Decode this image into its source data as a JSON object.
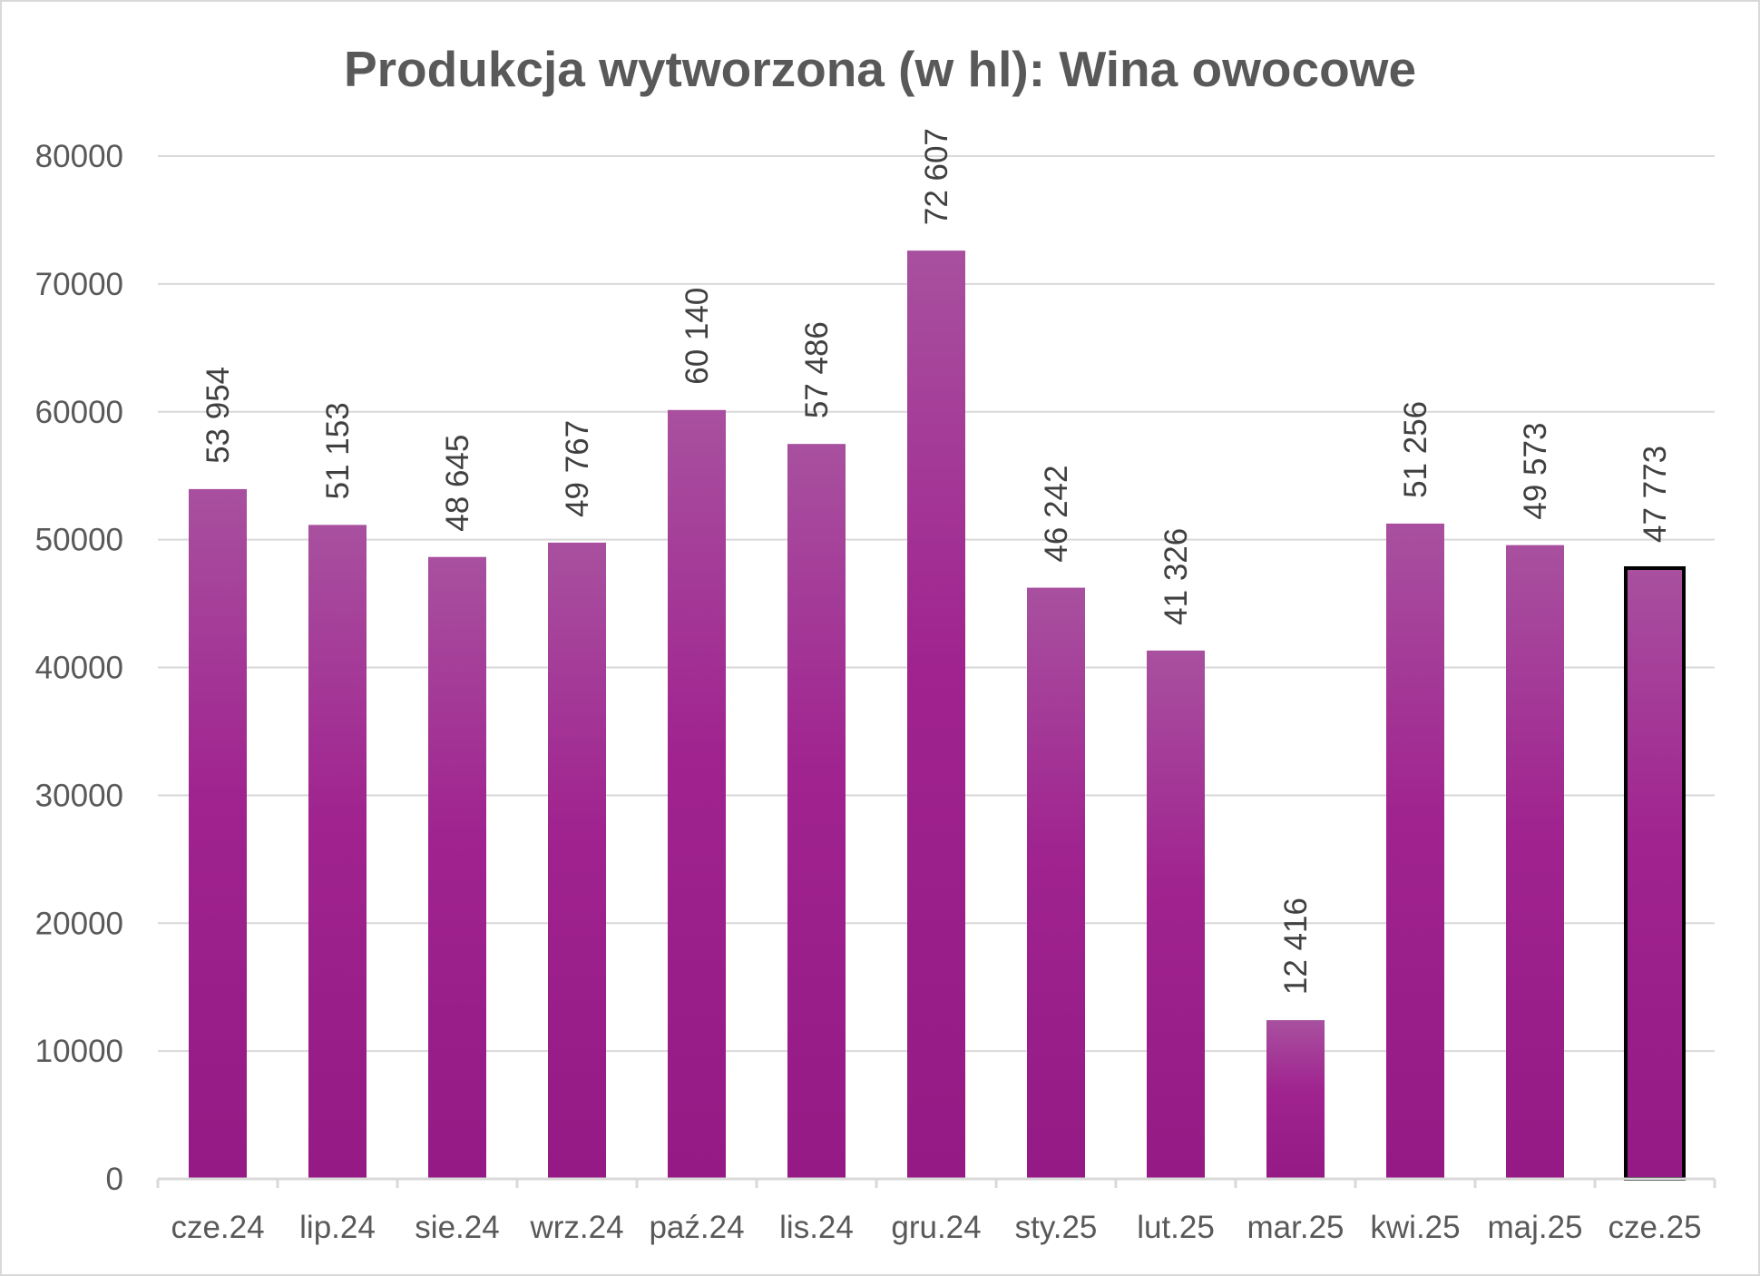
{
  "chart_data": {
    "type": "bar",
    "title": "Produkcja wytworzona (w hl): Wina owocowe",
    "xlabel": "",
    "ylabel": "",
    "ylim": [
      0,
      80000
    ],
    "yticks": [
      0,
      10000,
      20000,
      30000,
      40000,
      50000,
      60000,
      70000,
      80000
    ],
    "ytick_labels": [
      "0",
      "10000",
      "20000",
      "30000",
      "40000",
      "50000",
      "60000",
      "70000",
      "80000"
    ],
    "grid": true,
    "legend": "none",
    "categories": [
      "cze.24",
      "lip.24",
      "sie.24",
      "wrz.24",
      "paź.24",
      "lis.24",
      "gru.24",
      "sty.25",
      "lut.25",
      "mar.25",
      "kwi.25",
      "maj.25",
      "cze.25"
    ],
    "series": [
      {
        "values": [
          53954,
          51153,
          48645,
          49767,
          60140,
          57486,
          72607,
          46242,
          41326,
          12416,
          51256,
          49573,
          47773
        ],
        "data_labels": [
          "53 954",
          "51 153",
          "48 645",
          "49 767",
          "60 140",
          "57 486",
          "72 607",
          "46 242",
          "41 326",
          "12 416",
          "51 256",
          "49 573",
          "47 773"
        ]
      }
    ],
    "highlighted_category": "cze.25",
    "colors": {
      "bar_top": "#a8509f",
      "bar_mid": "#a0238f",
      "bar_bottom": "#951a85",
      "highlight_outline": "#000000",
      "gridline": "#d9d9d9",
      "axis_line": "#d9d9d9",
      "text": "#595959"
    }
  }
}
